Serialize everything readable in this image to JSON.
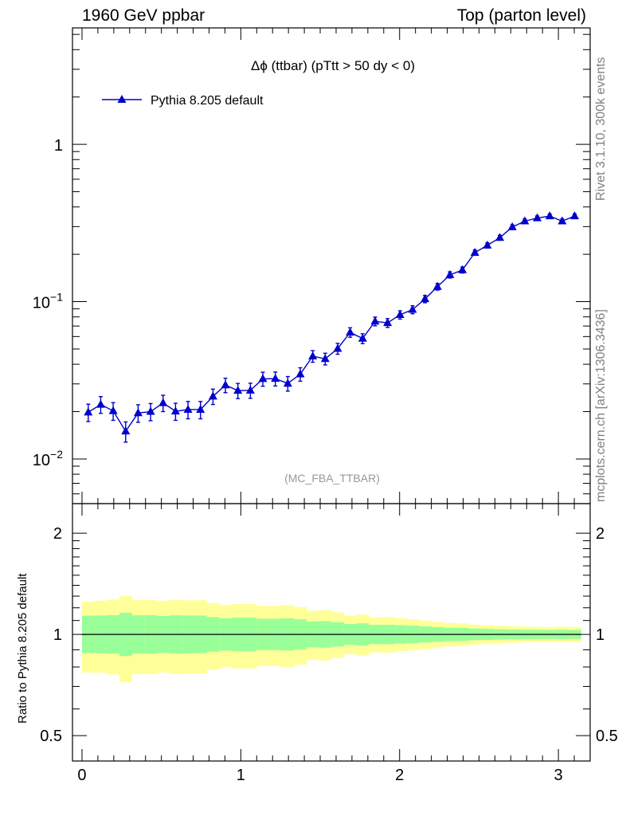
{
  "header": {
    "left": "1960 GeV ppbar",
    "right": "Top (parton level)"
  },
  "side_text": {
    "rivet": "Rivet 3.1.10,  300k events",
    "source": "mcplots.cern.ch [arXiv:1306.3436]"
  },
  "colors": {
    "series": "#0000cc",
    "band_inner": "#99ff99",
    "band_outer": "#ffff99",
    "frame": "#000000",
    "watermark": "#999999"
  },
  "chart_data": [
    {
      "type": "line",
      "title": "Δϕ (ttbar) (pTtt > 50 dy < 0)",
      "watermark": "(MC_FBA_TTBAR)",
      "yscale": "log",
      "ylim": [
        0.0052,
        5.5
      ],
      "xlim": [
        -0.06,
        3.2
      ],
      "y_ticks": [
        {
          "value": 0.01,
          "base": "10",
          "exp": "−2"
        },
        {
          "value": 0.1,
          "base": "10",
          "exp": "−1"
        },
        {
          "value": 1,
          "base": "1",
          "exp": ""
        }
      ],
      "legend": {
        "label": "Pythia 8.205 default",
        "placement": "top-left"
      },
      "series": [
        {
          "name": "Pythia 8.205 default",
          "marker": "triangle",
          "x": [
            0.0393,
            0.1178,
            0.1963,
            0.2749,
            0.3534,
            0.432,
            0.5105,
            0.589,
            0.6676,
            0.7461,
            0.8247,
            0.9032,
            0.9817,
            1.0603,
            1.1388,
            1.2174,
            1.2959,
            1.3744,
            1.453,
            1.5315,
            1.6101,
            1.6886,
            1.7671,
            1.8457,
            1.9242,
            2.0028,
            2.0813,
            2.1598,
            2.2384,
            2.3169,
            2.3955,
            2.474,
            2.5525,
            2.6311,
            2.7096,
            2.7882,
            2.8667,
            2.9452,
            3.0238,
            3.1023
          ],
          "y": [
            0.0198,
            0.0222,
            0.0202,
            0.015,
            0.0196,
            0.02,
            0.0227,
            0.0201,
            0.0206,
            0.0206,
            0.025,
            0.0295,
            0.0272,
            0.0273,
            0.0323,
            0.0324,
            0.0302,
            0.0346,
            0.045,
            0.0433,
            0.0503,
            0.0638,
            0.0583,
            0.075,
            0.0733,
            0.0825,
            0.089,
            0.104,
            0.1245,
            0.148,
            0.159,
            0.205,
            0.228,
            0.255,
            0.298,
            0.325,
            0.34,
            0.35,
            0.325,
            0.35
          ],
          "yerr": [
            0.0025,
            0.0027,
            0.0026,
            0.0022,
            0.0025,
            0.0025,
            0.0027,
            0.0025,
            0.0026,
            0.0026,
            0.0028,
            0.0031,
            0.003,
            0.003,
            0.0033,
            0.0033,
            0.0032,
            0.0034,
            0.0038,
            0.0037,
            0.004,
            0.0044,
            0.0042,
            0.0048,
            0.0047,
            0.005,
            0.0052,
            0.0056,
            0.0061,
            0.0067,
            0.007,
            0.008,
            0.0085,
            0.009,
            0.0098,
            0.0103,
            0.0106,
            0.0108,
            0.0103,
            0.0108
          ]
        }
      ]
    },
    {
      "type": "area",
      "title": "",
      "ylabel": "Ratio to Pythia 8.205 default",
      "yscale": "log",
      "ylim": [
        0.42,
        2.45
      ],
      "xlim": [
        -0.06,
        3.2
      ],
      "reference_line": 1,
      "y_ticks": [
        0.5,
        1,
        2
      ],
      "y_tick_labels": [
        "0.5",
        "1",
        "2"
      ],
      "x_ticks": [
        0,
        1,
        2,
        3
      ],
      "x_tick_labels": [
        "0",
        "1",
        "2",
        "3"
      ],
      "bin_edges": [
        0.0,
        0.0785,
        0.1571,
        0.2356,
        0.3142,
        0.3927,
        0.4712,
        0.5498,
        0.6283,
        0.7069,
        0.7854,
        0.8639,
        0.9425,
        1.021,
        1.0996,
        1.1781,
        1.2566,
        1.3352,
        1.4137,
        1.4923,
        1.5708,
        1.6493,
        1.7279,
        1.8064,
        1.885,
        1.9635,
        2.042,
        2.1206,
        2.1991,
        2.2777,
        2.3562,
        2.4347,
        2.5133,
        2.5918,
        2.6704,
        2.7489,
        2.8274,
        2.906,
        2.9845,
        3.0631,
        3.1416
      ],
      "band_inner": {
        "lower": [
          0.88,
          0.879,
          0.876,
          0.862,
          0.877,
          0.877,
          0.881,
          0.877,
          0.879,
          0.879,
          0.888,
          0.895,
          0.891,
          0.891,
          0.898,
          0.898,
          0.895,
          0.902,
          0.915,
          0.913,
          0.92,
          0.931,
          0.927,
          0.936,
          0.935,
          0.939,
          0.942,
          0.946,
          0.951,
          0.955,
          0.956,
          0.961,
          0.963,
          0.965,
          0.967,
          0.968,
          0.969,
          0.97,
          0.968,
          0.97
        ],
        "upper": [
          1.137,
          1.138,
          1.141,
          1.16,
          1.14,
          1.14,
          1.135,
          1.14,
          1.138,
          1.138,
          1.126,
          1.117,
          1.122,
          1.122,
          1.113,
          1.113,
          1.117,
          1.109,
          1.093,
          1.095,
          1.087,
          1.074,
          1.079,
          1.068,
          1.069,
          1.065,
          1.062,
          1.057,
          1.052,
          1.047,
          1.046,
          1.041,
          1.039,
          1.036,
          1.034,
          1.033,
          1.032,
          1.031,
          1.033,
          1.031
        ]
      },
      "band_outer": {
        "lower": [
          0.77,
          0.769,
          0.76,
          0.72,
          0.762,
          0.762,
          0.77,
          0.762,
          0.766,
          0.766,
          0.785,
          0.8,
          0.792,
          0.792,
          0.806,
          0.806,
          0.8,
          0.813,
          0.84,
          0.836,
          0.852,
          0.873,
          0.865,
          0.884,
          0.882,
          0.89,
          0.896,
          0.904,
          0.913,
          0.921,
          0.924,
          0.933,
          0.936,
          0.94,
          0.945,
          0.947,
          0.948,
          0.949,
          0.947,
          0.949
        ],
        "upper": [
          1.25,
          1.26,
          1.27,
          1.3,
          1.268,
          1.268,
          1.258,
          1.268,
          1.263,
          1.263,
          1.24,
          1.223,
          1.231,
          1.231,
          1.215,
          1.215,
          1.223,
          1.207,
          1.176,
          1.181,
          1.163,
          1.137,
          1.146,
          1.125,
          1.127,
          1.118,
          1.11,
          1.1,
          1.09,
          1.082,
          1.078,
          1.07,
          1.065,
          1.061,
          1.057,
          1.055,
          1.053,
          1.052,
          1.055,
          1.052
        ]
      }
    }
  ]
}
